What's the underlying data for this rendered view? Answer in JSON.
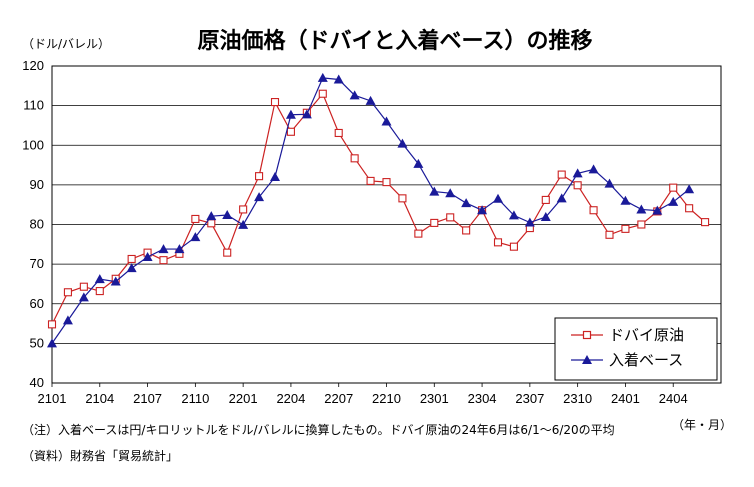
{
  "chart_data": {
    "type": "line",
    "title": "原油価格（ドバイと入着ベース）の推移",
    "ylabel": "（ドル/バレル）",
    "xlabel": "（年・月）",
    "ylim": [
      40,
      120
    ],
    "yticks": [
      40,
      50,
      60,
      70,
      80,
      90,
      100,
      110,
      120
    ],
    "x_tick_labels": [
      "2101",
      "2104",
      "2107",
      "2110",
      "2201",
      "2204",
      "2207",
      "2210",
      "2301",
      "2304",
      "2307",
      "2310",
      "2401",
      "2404"
    ],
    "grid": true,
    "legend_position": "bottom-right",
    "series": [
      {
        "name": "ドバイ原油",
        "color": "#cc2222",
        "marker": "open-square",
        "x": [
          "2101",
          "2102",
          "2103",
          "2104",
          "2105",
          "2106",
          "2107",
          "2108",
          "2109",
          "2110",
          "2111",
          "2112",
          "2201",
          "2202",
          "2203",
          "2204",
          "2205",
          "2206",
          "2207",
          "2208",
          "2209",
          "2210",
          "2211",
          "2212",
          "2301",
          "2302",
          "2303",
          "2304",
          "2305",
          "2306",
          "2307",
          "2308",
          "2309",
          "2310",
          "2311",
          "2312",
          "2401",
          "2402",
          "2403",
          "2404",
          "2405",
          "2406"
        ],
        "values": [
          54.8,
          62.9,
          64.3,
          63.2,
          66.3,
          71.3,
          72.9,
          71.0,
          72.6,
          81.4,
          80.3,
          72.9,
          83.8,
          92.2,
          110.9,
          103.4,
          108.2,
          113.0,
          103.1,
          96.7,
          91.0,
          90.7,
          86.6,
          77.7,
          80.4,
          81.8,
          78.5,
          83.6,
          75.5,
          74.4,
          79.1,
          86.2,
          92.6,
          89.9,
          83.6,
          77.4,
          78.9,
          80.0,
          83.3,
          89.3,
          84.1,
          80.6
        ]
      },
      {
        "name": "入着ベース",
        "color": "#1a1a99",
        "marker": "filled-triangle",
        "x": [
          "2101",
          "2102",
          "2103",
          "2104",
          "2105",
          "2106",
          "2107",
          "2108",
          "2109",
          "2110",
          "2111",
          "2112",
          "2201",
          "2202",
          "2203",
          "2204",
          "2205",
          "2206",
          "2207",
          "2208",
          "2209",
          "2210",
          "2211",
          "2212",
          "2301",
          "2302",
          "2303",
          "2304",
          "2305",
          "2306",
          "2307",
          "2308",
          "2309",
          "2310",
          "2311",
          "2312",
          "2401",
          "2402",
          "2403",
          "2404",
          "2405"
        ],
        "values": [
          50.0,
          55.8,
          61.6,
          66.2,
          65.6,
          69.0,
          71.8,
          73.8,
          73.8,
          76.8,
          82.1,
          82.4,
          79.9,
          86.9,
          92.0,
          107.7,
          107.8,
          117.0,
          116.6,
          112.6,
          111.2,
          106.0,
          100.4,
          95.3,
          88.3,
          87.9,
          85.4,
          83.6,
          86.5,
          82.3,
          80.5,
          81.9,
          86.6,
          92.9,
          93.9,
          90.3,
          86.0,
          83.8,
          83.5,
          85.7,
          88.9
        ]
      }
    ]
  },
  "notes": {
    "note1": "（注）入着ベースは円/キロリットルをドル/バレルに換算したもの。ドバイ原油の24年6月は6/1～6/20の平均",
    "source": "（資料）財務省「貿易統計」"
  }
}
